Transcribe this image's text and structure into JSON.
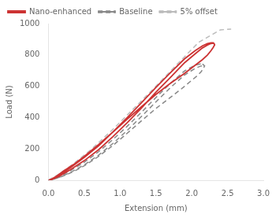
{
  "chart_data": {
    "type": "line",
    "xlabel": "Extension (mm)",
    "ylabel": "Load (N)",
    "xlim": [
      0.0,
      3.0
    ],
    "ylim": [
      0,
      1000
    ],
    "xticks": [
      {
        "value": 0.0,
        "label": "0.0"
      },
      {
        "value": 0.5,
        "label": "0.5"
      },
      {
        "value": 1.0,
        "label": "1.0"
      },
      {
        "value": 1.5,
        "label": "1.5"
      },
      {
        "value": 2.0,
        "label": "2.0"
      },
      {
        "value": 2.5,
        "label": "2.5"
      },
      {
        "value": 3.0,
        "label": "3.0"
      }
    ],
    "yticks": [
      0,
      200,
      400,
      600,
      800,
      1000
    ],
    "grid": false,
    "legend": "upper left",
    "series": [
      {
        "name": "Nano-enhanced",
        "color": "#cc3333",
        "line_style": "solid",
        "x": [
          0.0,
          0.05,
          0.15,
          0.3,
          0.5,
          0.7,
          0.9,
          1.1,
          1.3,
          1.5,
          1.7,
          1.9,
          2.05,
          2.15,
          2.22,
          2.27,
          2.3,
          2.31,
          null,
          0.0,
          0.05,
          0.15,
          0.3,
          0.5,
          0.7,
          0.9,
          1.1,
          1.3,
          1.5,
          1.7,
          1.9,
          2.05,
          2.15,
          2.22,
          2.27,
          2.3,
          2.31,
          null,
          2.31,
          2.32,
          2.3,
          2.27,
          2.22,
          2.15,
          2.05,
          1.9,
          1.7,
          1.5,
          1.3,
          1.1,
          0.9,
          0.7,
          0.5,
          0.35,
          0.2,
          0.1,
          0.03,
          0.0
        ],
        "values": [
          0,
          5,
          25,
          65,
          125,
          195,
          278,
          368,
          462,
          562,
          655,
          750,
          808,
          845,
          863,
          873,
          875,
          872,
          null,
          0,
          8,
          32,
          78,
          145,
          220,
          308,
          400,
          495,
          592,
          685,
          775,
          828,
          858,
          872,
          878,
          878,
          875,
          null,
          875,
          865,
          848,
          828,
          800,
          770,
          735,
          682,
          618,
          548,
          470,
          390,
          308,
          228,
          152,
          100,
          55,
          22,
          4,
          0
        ]
      },
      {
        "name": "Baseline",
        "color": "#888888",
        "line_style": "dashed",
        "x": [
          0.0,
          0.05,
          0.15,
          0.3,
          0.5,
          0.7,
          0.9,
          1.1,
          1.3,
          1.5,
          1.7,
          1.9,
          2.05,
          2.12,
          2.15,
          null,
          0.0,
          0.05,
          0.15,
          0.3,
          0.5,
          0.7,
          0.9,
          1.1,
          1.3,
          1.5,
          1.7,
          1.9,
          2.05,
          2.12,
          2.15,
          null,
          2.15,
          2.18,
          2.16,
          2.13,
          2.08,
          2.0,
          1.88,
          1.7,
          1.5,
          1.3,
          1.1,
          0.9,
          0.7,
          0.5,
          0.35,
          0.2,
          0.08,
          0.0
        ],
        "values": [
          0,
          4,
          18,
          48,
          98,
          160,
          235,
          318,
          408,
          500,
          590,
          672,
          715,
          728,
          730,
          null,
          0,
          6,
          24,
          60,
          115,
          182,
          260,
          345,
          435,
          528,
          618,
          698,
          735,
          742,
          742,
          null,
          742,
          730,
          712,
          692,
          668,
          638,
          592,
          528,
          458,
          380,
          300,
          222,
          152,
          92,
          55,
          26,
          7,
          0
        ]
      },
      {
        "name": "5% offset",
        "color": "#bbbbbb",
        "line_style": "dashed",
        "x": [
          0.0,
          0.15,
          0.35,
          0.6,
          0.9,
          1.2,
          1.5,
          1.8,
          2.1,
          2.4,
          2.55
        ],
        "values": [
          0,
          40,
          105,
          198,
          325,
          462,
          600,
          742,
          882,
          960,
          965
        ]
      }
    ]
  }
}
